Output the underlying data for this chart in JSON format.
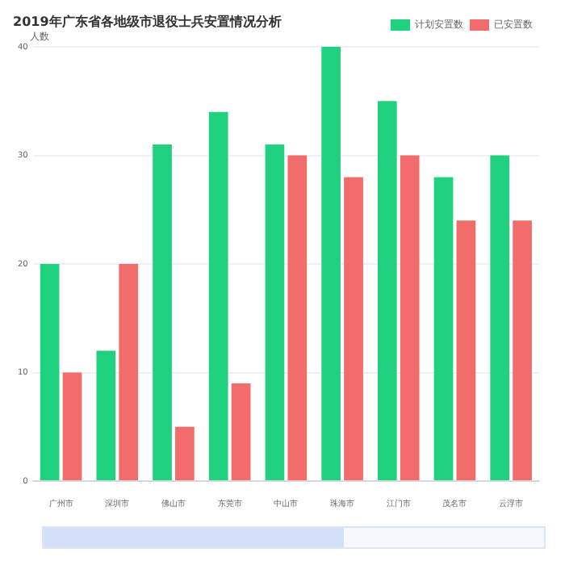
{
  "chart_data": {
    "type": "bar",
    "title": "2019年广东省各地级市退役士兵安置情况分析",
    "ylabel": "人数",
    "categories": [
      "广州市",
      "深圳市",
      "佛山市",
      "东莞市",
      "中山市",
      "珠海市",
      "江门市",
      "茂名市",
      "云浮市"
    ],
    "series": [
      {
        "name": "计划安置数",
        "color": "#20d180",
        "values": [
          20,
          12,
          31,
          34,
          31,
          40,
          35,
          28,
          30
        ]
      },
      {
        "name": "已安置数",
        "color": "#f36c6c",
        "values": [
          10,
          20,
          5,
          9,
          30,
          28,
          30,
          24,
          24
        ]
      }
    ],
    "ylim": [
      0,
      40
    ],
    "yticks": [
      0,
      10,
      20,
      30,
      40
    ],
    "grid": "y",
    "legend": "top right"
  }
}
